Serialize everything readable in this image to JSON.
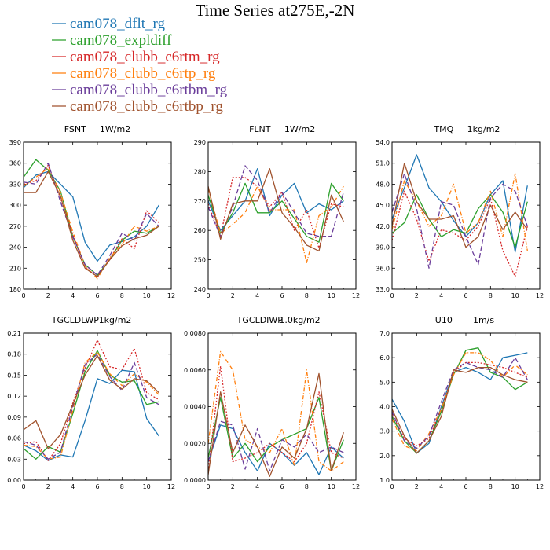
{
  "title": "Time Series at275E,-2N",
  "legend": [
    {
      "name": "cam078_dflt_rg",
      "color": "#1f77b4",
      "dash": ""
    },
    {
      "name": "cam078_expldiff",
      "color": "#2ca02c",
      "dash": ""
    },
    {
      "name": "cam078_clubb_c6rtm_rg",
      "color": "#d62728",
      "dash": "2,2"
    },
    {
      "name": "cam078_clubb_c6rtp_rg",
      "color": "#ff7f0e",
      "dash": "5,2,1,2"
    },
    {
      "name": "cam078_clubb_c6rtbm_rg",
      "color": "#6a3d9a",
      "dash": "6,3"
    },
    {
      "name": "cam078_clubb_c6rtbp_rg",
      "color": "#a0522d",
      "dash": ""
    }
  ],
  "chart_data": [
    {
      "type": "line",
      "var": "FSNT",
      "unit": "1W/m2",
      "x": [
        0,
        1,
        2,
        3,
        4,
        5,
        6,
        7,
        8,
        9,
        10,
        11
      ],
      "xlim": [
        0,
        12
      ],
      "xticks": [
        0,
        2,
        4,
        6,
        8,
        10,
        12
      ],
      "ylim": [
        180,
        390
      ],
      "yticks": [
        "180",
        "210",
        "240",
        "270",
        "300",
        "330",
        "360",
        "390"
      ],
      "series": [
        {
          "name": "cam078_dflt_rg",
          "values": [
            325,
            343,
            348,
            330,
            312,
            247,
            220,
            243,
            248,
            255,
            270,
            300
          ]
        },
        {
          "name": "cam078_expldiff",
          "values": [
            340,
            365,
            350,
            320,
            255,
            215,
            200,
            222,
            250,
            263,
            260,
            270
          ]
        },
        {
          "name": "cam078_clubb_c6rtm_rg",
          "values": [
            330,
            335,
            357,
            310,
            258,
            212,
            197,
            223,
            252,
            238,
            292,
            275
          ]
        },
        {
          "name": "cam078_clubb_c6rtp_rg",
          "values": [
            327,
            340,
            353,
            318,
            262,
            213,
            195,
            225,
            244,
            270,
            263,
            270
          ]
        },
        {
          "name": "cam078_clubb_c6rtbm_rg",
          "values": [
            333,
            330,
            360,
            305,
            255,
            215,
            200,
            228,
            260,
            250,
            288,
            270
          ]
        },
        {
          "name": "cam078_clubb_c6rtbp_rg",
          "values": [
            318,
            318,
            348,
            313,
            250,
            210,
            198,
            222,
            242,
            252,
            257,
            270
          ]
        }
      ]
    },
    {
      "type": "line",
      "var": "FLNT",
      "unit": "1W/m2",
      "x": [
        0,
        1,
        2,
        3,
        4,
        5,
        6,
        7,
        8,
        9,
        10,
        11
      ],
      "xlim": [
        0,
        12
      ],
      "xticks": [
        0,
        2,
        4,
        6,
        8,
        10,
        12
      ],
      "ylim": [
        240,
        290
      ],
      "yticks": [
        "240",
        "250",
        "260",
        "270",
        "280",
        "290"
      ],
      "series": [
        {
          "name": "cam078_dflt_rg",
          "values": [
            270,
            260,
            265,
            270,
            281,
            265,
            272,
            276,
            266,
            269,
            267,
            270
          ]
        },
        {
          "name": "cam078_expldiff",
          "values": [
            272,
            259,
            266,
            276,
            266,
            266,
            270,
            264,
            258,
            256,
            276,
            270
          ]
        },
        {
          "name": "cam078_clubb_c6rtm_rg",
          "values": [
            269,
            258,
            278,
            278,
            275,
            268,
            273,
            260,
            267,
            254,
            269,
            268
          ]
        },
        {
          "name": "cam078_clubb_c6rtp_rg",
          "values": [
            274,
            259,
            262,
            266,
            275,
            267,
            267,
            267,
            249,
            265,
            268,
            275
          ]
        },
        {
          "name": "cam078_clubb_c6rtbm_rg",
          "values": [
            268,
            258,
            268,
            282,
            277,
            266,
            273,
            266,
            259,
            258,
            258,
            273
          ]
        },
        {
          "name": "cam078_clubb_c6rtbp_rg",
          "values": [
            275,
            257,
            269,
            270,
            270,
            281,
            266,
            261,
            255,
            253,
            272,
            263
          ]
        }
      ]
    },
    {
      "type": "line",
      "var": "TMQ",
      "unit": "1kg/m2",
      "x": [
        0,
        1,
        2,
        3,
        4,
        5,
        6,
        7,
        8,
        9,
        10,
        11
      ],
      "xlim": [
        0,
        12
      ],
      "xticks": [
        0,
        2,
        4,
        6,
        8,
        10,
        12
      ],
      "ylim": [
        33,
        54
      ],
      "yticks": [
        "33.0",
        "36.0",
        "39.0",
        "42.0",
        "45.0",
        "48.0",
        "51.0",
        "54.0"
      ],
      "series": [
        {
          "name": "cam078_dflt_rg",
          "values": [
            43.0,
            47.5,
            52.2,
            47.5,
            45.5,
            42.8,
            40.5,
            42.5,
            46.5,
            48.5,
            38.3,
            47.8
          ]
        },
        {
          "name": "cam078_expldiff",
          "values": [
            41.0,
            42.5,
            46.5,
            43.0,
            40.5,
            41.5,
            41.0,
            44.5,
            46.5,
            44.0,
            39.0,
            45.5
          ]
        },
        {
          "name": "cam078_clubb_c6rtm_rg",
          "values": [
            40.0,
            47.0,
            43.0,
            37.0,
            41.5,
            41.0,
            40.0,
            42.0,
            46.0,
            38.5,
            34.8,
            42.0
          ]
        },
        {
          "name": "cam078_clubb_c6rtp_rg",
          "values": [
            41.5,
            48.5,
            45.5,
            42.0,
            43.5,
            48.0,
            41.0,
            42.5,
            47.0,
            40.5,
            49.5,
            38.5
          ]
        },
        {
          "name": "cam078_clubb_c6rtbm_rg",
          "values": [
            44.0,
            49.5,
            44.5,
            36.0,
            45.5,
            45.0,
            40.5,
            36.5,
            46.0,
            48.0,
            47.0,
            42.0
          ]
        },
        {
          "name": "cam078_clubb_c6rtbp_rg",
          "values": [
            42.0,
            51.0,
            45.5,
            43.0,
            43.0,
            43.5,
            39.0,
            40.5,
            45.0,
            41.5,
            44.0,
            41.5
          ]
        }
      ]
    },
    {
      "type": "line",
      "var": "TGCLDLWP",
      "unit": "1kg/m2",
      "x": [
        0,
        1,
        2,
        3,
        4,
        5,
        6,
        7,
        8,
        9,
        10,
        11
      ],
      "xlim": [
        0,
        12
      ],
      "xticks": [
        0,
        2,
        4,
        6,
        8,
        10,
        12
      ],
      "ylim": [
        0,
        0.21
      ],
      "yticks": [
        "0.00",
        "0.03",
        "0.06",
        "0.09",
        "0.12",
        "0.15",
        "0.18",
        "0.21"
      ],
      "series": [
        {
          "name": "cam078_dflt_rg",
          "values": [
            0.05,
            0.042,
            0.028,
            0.036,
            0.033,
            0.085,
            0.145,
            0.138,
            0.157,
            0.155,
            0.088,
            0.063
          ]
        },
        {
          "name": "cam078_expldiff",
          "values": [
            0.045,
            0.03,
            0.048,
            0.04,
            0.095,
            0.155,
            0.185,
            0.15,
            0.14,
            0.142,
            0.108,
            0.112
          ]
        },
        {
          "name": "cam078_clubb_c6rtm_rg",
          "values": [
            0.052,
            0.055,
            0.028,
            0.052,
            0.11,
            0.16,
            0.2,
            0.162,
            0.158,
            0.188,
            0.125,
            0.115
          ]
        },
        {
          "name": "cam078_clubb_c6rtp_rg",
          "values": [
            0.05,
            0.048,
            0.03,
            0.033,
            0.1,
            0.168,
            0.183,
            0.152,
            0.135,
            0.152,
            0.14,
            0.122
          ]
        },
        {
          "name": "cam078_clubb_c6rtbm_rg",
          "values": [
            0.055,
            0.05,
            0.03,
            0.04,
            0.105,
            0.165,
            0.18,
            0.148,
            0.128,
            0.168,
            0.118,
            0.108
          ]
        },
        {
          "name": "cam078_clubb_c6rtbp_rg",
          "values": [
            0.072,
            0.085,
            0.045,
            0.065,
            0.108,
            0.15,
            0.178,
            0.143,
            0.13,
            0.145,
            0.142,
            0.125
          ]
        }
      ]
    },
    {
      "type": "line",
      "var": "TGCLDIWP",
      "unit": "1.0kg/m2",
      "x": [
        0,
        1,
        2,
        3,
        4,
        5,
        6,
        7,
        8,
        9,
        10,
        11
      ],
      "xlim": [
        0,
        12
      ],
      "xticks": [
        0,
        2,
        4,
        6,
        8,
        10,
        12
      ],
      "ylim": [
        0,
        0.008
      ],
      "yticks": [
        "0.0000",
        "0.0020",
        "0.0040",
        "0.0060",
        "0.0080"
      ],
      "series": [
        {
          "name": "cam078_dflt_rg",
          "values": [
            0.001,
            0.003,
            0.0028,
            0.0015,
            0.0005,
            0.002,
            0.0015,
            0.0008,
            0.0015,
            0.0003,
            0.0018,
            0.0012
          ]
        },
        {
          "name": "cam078_expldiff",
          "values": [
            0.0012,
            0.0045,
            0.0012,
            0.002,
            0.001,
            0.0018,
            0.0022,
            0.0025,
            0.0028,
            0.0045,
            0.0005,
            0.0022
          ]
        },
        {
          "name": "cam078_clubb_c6rtm_rg",
          "values": [
            0.0005,
            0.0062,
            0.001,
            0.0012,
            0.0015,
            0.002,
            0.0015,
            0.001,
            0.002,
            0.0048,
            0.0015,
            0.0012
          ]
        },
        {
          "name": "cam078_clubb_c6rtp_rg",
          "values": [
            0.002,
            0.007,
            0.006,
            0.0022,
            0.0018,
            0.0015,
            0.0028,
            0.0008,
            0.006,
            0.001,
            0.0005,
            0.001
          ]
        },
        {
          "name": "cam078_clubb_c6rtbm_rg",
          "values": [
            0.001,
            0.0032,
            0.003,
            0.0006,
            0.0028,
            0.0005,
            0.0022,
            0.0018,
            0.0025,
            0.0015,
            0.0018,
            0.0015
          ]
        },
        {
          "name": "cam078_clubb_c6rtbp_rg",
          "values": [
            0.0003,
            0.0048,
            0.0015,
            0.003,
            0.0018,
            0.0002,
            0.0018,
            0.0012,
            0.0028,
            0.0058,
            0.0005,
            0.0026
          ]
        }
      ]
    },
    {
      "type": "line",
      "var": "U10",
      "unit": "1m/s",
      "x": [
        0,
        1,
        2,
        3,
        4,
        5,
        6,
        7,
        8,
        9,
        10,
        11
      ],
      "xlim": [
        0,
        12
      ],
      "xticks": [
        0,
        2,
        4,
        6,
        8,
        10,
        12
      ],
      "ylim": [
        1,
        7
      ],
      "yticks": [
        "1.0",
        "2.0",
        "3.0",
        "4.0",
        "5.0",
        "6.0",
        "7.0"
      ],
      "series": [
        {
          "name": "cam078_dflt_rg",
          "values": [
            4.3,
            3.4,
            2.1,
            2.5,
            4.0,
            5.4,
            5.6,
            5.4,
            5.1,
            6.0,
            6.1,
            6.2
          ]
        },
        {
          "name": "cam078_expldiff",
          "values": [
            3.6,
            2.6,
            2.1,
            2.6,
            3.8,
            5.3,
            6.3,
            6.4,
            5.4,
            5.2,
            4.7,
            5.0
          ]
        },
        {
          "name": "cam078_clubb_c6rtm_rg",
          "values": [
            3.7,
            2.7,
            2.4,
            2.7,
            3.9,
            5.4,
            5.8,
            5.8,
            5.7,
            5.6,
            5.4,
            5.2
          ]
        },
        {
          "name": "cam078_clubb_c6rtp_rg",
          "values": [
            3.5,
            2.4,
            2.2,
            2.9,
            3.9,
            5.3,
            6.2,
            6.2,
            5.9,
            5.2,
            5.7,
            5.3
          ]
        },
        {
          "name": "cam078_clubb_c6rtbm_rg",
          "values": [
            3.8,
            2.6,
            2.3,
            2.8,
            4.2,
            5.5,
            5.8,
            5.6,
            5.5,
            5.2,
            6.0,
            5.1
          ]
        },
        {
          "name": "cam078_clubb_c6rtbp_rg",
          "values": [
            3.9,
            2.8,
            2.1,
            2.6,
            3.6,
            5.5,
            5.4,
            5.6,
            5.6,
            5.3,
            5.1,
            5.0
          ]
        }
      ]
    }
  ]
}
